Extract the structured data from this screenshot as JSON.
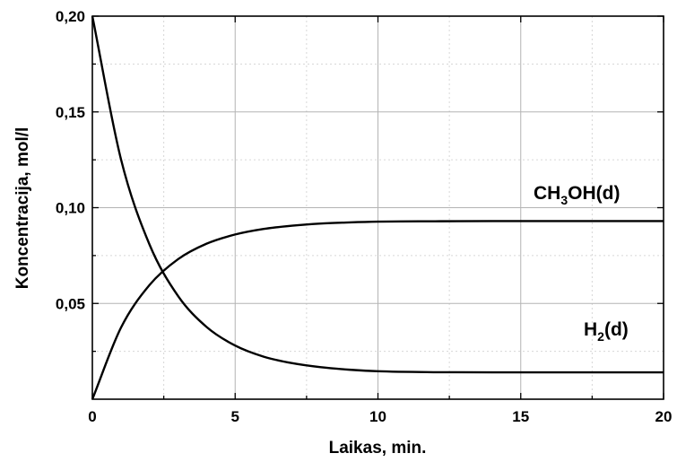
{
  "chart_data": {
    "type": "line",
    "xlabel": "Laikas, min.",
    "ylabel": "Koncentracija, mol/l",
    "xlim": [
      0,
      20
    ],
    "ylim": [
      0,
      0.2
    ],
    "x_ticks": [
      0,
      5,
      10,
      15,
      20
    ],
    "x_tick_labels": [
      "0",
      "5",
      "10",
      "15",
      "20"
    ],
    "y_ticks": [
      0.05,
      0.1,
      0.15,
      0.2
    ],
    "y_tick_labels": [
      "0,05",
      "0,10",
      "0,15",
      "0,20"
    ],
    "grid": true,
    "x": [
      0,
      1,
      2,
      3,
      4,
      5,
      6,
      7,
      8,
      9,
      10,
      12,
      14,
      16,
      18,
      20
    ],
    "series": [
      {
        "name": "CH3OH(d)",
        "label_main": "CH",
        "label_sub": "3",
        "label_rest": "OH(d)",
        "values": [
          0.0,
          0.0373,
          0.0596,
          0.0731,
          0.0812,
          0.086,
          0.0889,
          0.0906,
          0.0917,
          0.0923,
          0.0927,
          0.0929,
          0.093,
          0.093,
          0.093,
          0.093
        ]
      },
      {
        "name": "H2(d)",
        "label_main": "H",
        "label_sub": "2",
        "label_rest": "(d)",
        "values": [
          0.2,
          0.1254,
          0.0808,
          0.0539,
          0.0377,
          0.028,
          0.0222,
          0.0188,
          0.0167,
          0.0154,
          0.0146,
          0.0141,
          0.014,
          0.014,
          0.014,
          0.014
        ]
      }
    ]
  }
}
